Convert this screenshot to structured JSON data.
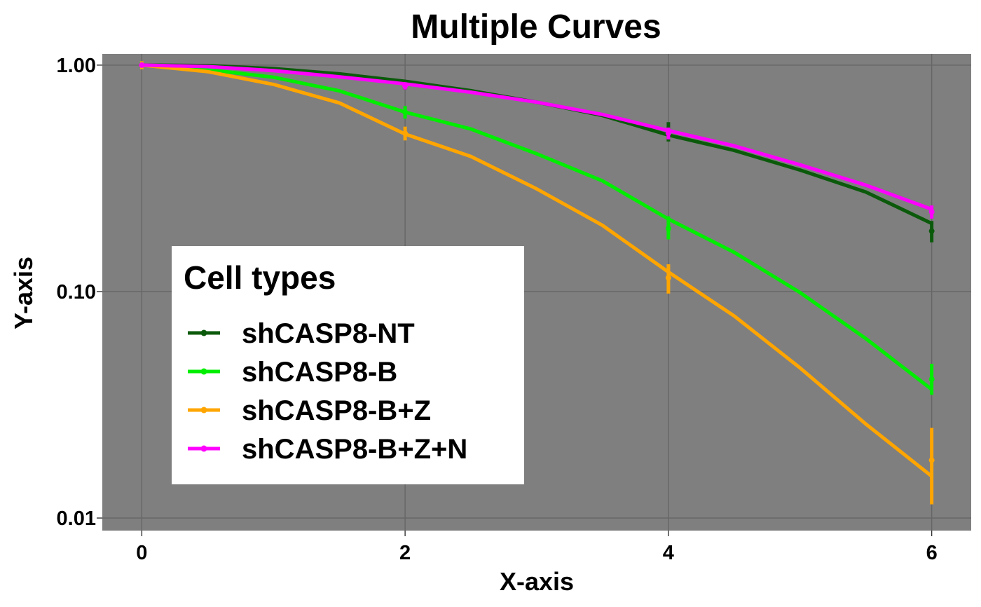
{
  "chart_data": {
    "type": "line",
    "title": "Multiple Curves",
    "xlabel": "X-axis",
    "ylabel": "Y-axis",
    "y_scale": "log",
    "xlim": [
      -0.3,
      6.3
    ],
    "ylim": [
      0.0088,
      1.12
    ],
    "x_ticks": [
      {
        "value": 0,
        "label": "0"
      },
      {
        "value": 2,
        "label": "2"
      },
      {
        "value": 4,
        "label": "4"
      },
      {
        "value": 6,
        "label": "6"
      }
    ],
    "y_ticks": [
      {
        "value": 1.0,
        "label": "1.00"
      },
      {
        "value": 0.1,
        "label": "0.10"
      },
      {
        "value": 0.01,
        "label": "0.01"
      }
    ],
    "grid": true,
    "panel_color": "#7f7f7f",
    "grid_color": "#666666",
    "legend": {
      "title": "Cell types",
      "position": "left-lower-inside"
    },
    "series": [
      {
        "name": "shCASP8-NT",
        "color": "#0b5a0b",
        "points": [
          {
            "x": 0,
            "y": 1.0,
            "lo": 0.97,
            "hi": 1.03
          },
          {
            "x": 2,
            "y": 0.82,
            "lo": 0.78,
            "hi": 0.86
          },
          {
            "x": 4,
            "y": 0.51,
            "lo": 0.46,
            "hi": 0.56
          },
          {
            "x": 6,
            "y": 0.185,
            "lo": 0.165,
            "hi": 0.205
          }
        ],
        "curve": [
          {
            "x": 0,
            "y": 1.0
          },
          {
            "x": 0.5,
            "y": 0.995
          },
          {
            "x": 1,
            "y": 0.965
          },
          {
            "x": 1.5,
            "y": 0.915
          },
          {
            "x": 2,
            "y": 0.848
          },
          {
            "x": 2.5,
            "y": 0.771
          },
          {
            "x": 3,
            "y": 0.686
          },
          {
            "x": 3.5,
            "y": 0.599
          },
          {
            "x": 4,
            "y": 0.491
          },
          {
            "x": 4.5,
            "y": 0.42
          },
          {
            "x": 5,
            "y": 0.344
          },
          {
            "x": 5.5,
            "y": 0.275
          },
          {
            "x": 6,
            "y": 0.2
          }
        ]
      },
      {
        "name": "shCASP8-B",
        "color": "#00ee00",
        "points": [
          {
            "x": 0,
            "y": 1.0,
            "lo": 0.97,
            "hi": 1.03
          },
          {
            "x": 2,
            "y": 0.62,
            "lo": 0.58,
            "hi": 0.66
          },
          {
            "x": 4,
            "y": 0.19,
            "lo": 0.17,
            "hi": 0.215
          },
          {
            "x": 6,
            "y": 0.041,
            "lo": 0.035,
            "hi": 0.048
          }
        ],
        "curve": [
          {
            "x": 0,
            "y": 1.0
          },
          {
            "x": 0.5,
            "y": 0.955
          },
          {
            "x": 1,
            "y": 0.884
          },
          {
            "x": 1.5,
            "y": 0.77
          },
          {
            "x": 2,
            "y": 0.62
          },
          {
            "x": 2.5,
            "y": 0.522
          },
          {
            "x": 3,
            "y": 0.406
          },
          {
            "x": 3.5,
            "y": 0.308
          },
          {
            "x": 4,
            "y": 0.209
          },
          {
            "x": 4.5,
            "y": 0.149
          },
          {
            "x": 5,
            "y": 0.099
          },
          {
            "x": 5.5,
            "y": 0.062
          },
          {
            "x": 6,
            "y": 0.037
          }
        ]
      },
      {
        "name": "shCASP8-B+Z",
        "color": "#ffa500",
        "points": [
          {
            "x": 0,
            "y": 1.0,
            "lo": 0.96,
            "hi": 1.04
          },
          {
            "x": 2,
            "y": 0.5,
            "lo": 0.465,
            "hi": 0.535
          },
          {
            "x": 4,
            "y": 0.115,
            "lo": 0.098,
            "hi": 0.132
          },
          {
            "x": 6,
            "y": 0.018,
            "lo": 0.0115,
            "hi": 0.025
          }
        ],
        "curve": [
          {
            "x": 0,
            "y": 1.0
          },
          {
            "x": 0.5,
            "y": 0.936
          },
          {
            "x": 1,
            "y": 0.822
          },
          {
            "x": 1.5,
            "y": 0.681
          },
          {
            "x": 2,
            "y": 0.496
          },
          {
            "x": 2.5,
            "y": 0.395
          },
          {
            "x": 3,
            "y": 0.284
          },
          {
            "x": 3.5,
            "y": 0.196
          },
          {
            "x": 4,
            "y": 0.122
          },
          {
            "x": 4.5,
            "y": 0.078
          },
          {
            "x": 5,
            "y": 0.046
          },
          {
            "x": 5.5,
            "y": 0.026
          },
          {
            "x": 6,
            "y": 0.0153
          }
        ]
      },
      {
        "name": "shCASP8-B+Z+N",
        "color": "#ff00ff",
        "points": [
          {
            "x": 0,
            "y": 1.0,
            "lo": 0.98,
            "hi": 1.02
          },
          {
            "x": 2,
            "y": 0.81,
            "lo": 0.78,
            "hi": 0.84
          },
          {
            "x": 4,
            "y": 0.5,
            "lo": 0.47,
            "hi": 0.53
          },
          {
            "x": 6,
            "y": 0.225,
            "lo": 0.21,
            "hi": 0.24
          }
        ],
        "curve": [
          {
            "x": 0,
            "y": 1.0
          },
          {
            "x": 0.5,
            "y": 0.985
          },
          {
            "x": 1,
            "y": 0.945
          },
          {
            "x": 1.5,
            "y": 0.888
          },
          {
            "x": 2,
            "y": 0.826
          },
          {
            "x": 2.5,
            "y": 0.759
          },
          {
            "x": 3,
            "y": 0.686
          },
          {
            "x": 3.5,
            "y": 0.605
          },
          {
            "x": 4,
            "y": 0.514
          },
          {
            "x": 4.5,
            "y": 0.44
          },
          {
            "x": 5,
            "y": 0.363
          },
          {
            "x": 5.5,
            "y": 0.295
          },
          {
            "x": 6,
            "y": 0.231
          }
        ]
      }
    ]
  }
}
